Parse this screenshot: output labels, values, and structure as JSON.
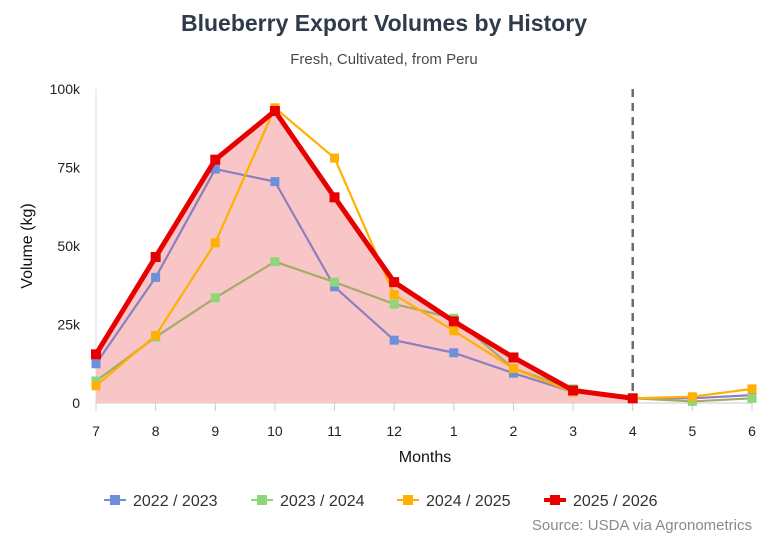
{
  "chart_data": {
    "type": "line",
    "title": "Blueberry Export Volumes by History",
    "subtitle": "Fresh, Cultivated, from Peru",
    "xlabel": "Months",
    "ylabel": "Volume (kg)",
    "categories": [
      "7",
      "8",
      "9",
      "10",
      "11",
      "12",
      "1",
      "2",
      "3",
      "4",
      "5",
      "6"
    ],
    "ylim": [
      0,
      100000
    ],
    "yticks": [
      0,
      25000,
      50000,
      75000,
      100000
    ],
    "ytick_labels": [
      "0",
      "25k",
      "50k",
      "75k",
      "100k"
    ],
    "marker_line_category": "4",
    "grid": "off",
    "legend_position": "bottom",
    "series": [
      {
        "name": "2022 / 2023",
        "color": "#8b7fc0",
        "marker_color": "#6e8fdb",
        "values": [
          12500,
          40000,
          74500,
          70500,
          37000,
          20000,
          16000,
          9500,
          3500,
          1500,
          1500,
          2500
        ]
      },
      {
        "name": "2023 / 2024",
        "color": "#a4aa6a",
        "marker_color": "#8fd67a",
        "values": [
          7000,
          21000,
          33500,
          45000,
          38500,
          31500,
          27000,
          11000,
          4500,
          1500,
          500,
          1500
        ]
      },
      {
        "name": "2024 / 2025",
        "color": "#ffb000",
        "marker_color": "#ffb000",
        "values": [
          5500,
          21500,
          51000,
          94000,
          78000,
          34500,
          23000,
          11000,
          3500,
          1500,
          2000,
          4500
        ]
      },
      {
        "name": "2025 / 2026",
        "color": "#e60000",
        "marker_color": "#e60000",
        "values": [
          15500,
          46500,
          77500,
          93000,
          65500,
          38500,
          26000,
          14500,
          4000,
          1500,
          null,
          null
        ]
      }
    ],
    "highlight_series": "2025 / 2026",
    "highlight_fill": "#f8c6c6",
    "source": "Source: USDA via Agronometrics"
  }
}
